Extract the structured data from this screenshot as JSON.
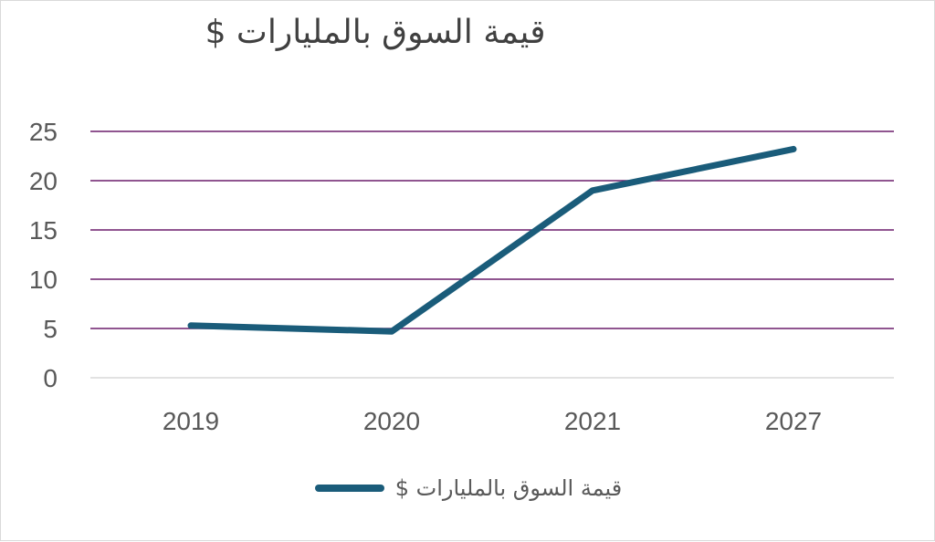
{
  "chart_data": {
    "type": "line",
    "title": "قيمة السوق بالمليارات $",
    "categories": [
      "2019",
      "2020",
      "2021",
      "2027"
    ],
    "series": [
      {
        "name": "قيمة السوق بالمليارات $",
        "values": [
          5.3,
          4.7,
          19.0,
          23.2
        ]
      }
    ],
    "ylim": [
      0,
      25
    ],
    "yticks": [
      0,
      5,
      10,
      15,
      20,
      25
    ],
    "xlabel": "",
    "ylabel": "",
    "grid": true,
    "legend_position": "bottom",
    "colors": {
      "line": "#1a5c7a",
      "grid": "#6b1d6b",
      "axis": "#d9d9d9"
    }
  }
}
